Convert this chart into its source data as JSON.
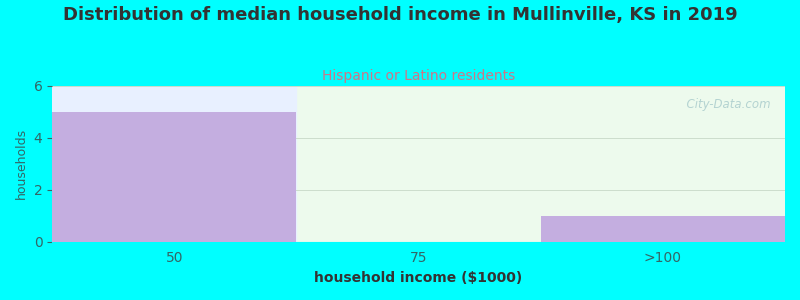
{
  "title": "Distribution of median household income in Mullinville, KS in 2019",
  "subtitle": "Hispanic or Latino residents",
  "xlabel": "household income ($1000)",
  "ylabel": "households",
  "categories": [
    "50",
    "75",
    ">100"
  ],
  "values": [
    5,
    0,
    1
  ],
  "bar_color": "#c4aee0",
  "background_color": "#00ffff",
  "plot_bg_left": "#e8f0ff",
  "plot_bg_right": "#edfaed",
  "title_color": "#333333",
  "subtitle_color": "#cc7788",
  "axis_label_color": "#336666",
  "tick_color": "#336666",
  "grid_color": "#ccddcc",
  "watermark": "  City-Data.com",
  "watermark_color": "#aacccc",
  "ylim": [
    0,
    6
  ],
  "yticks": [
    0,
    2,
    4,
    6
  ],
  "title_fontsize": 13,
  "subtitle_fontsize": 10,
  "xlabel_fontsize": 10,
  "ylabel_fontsize": 9
}
